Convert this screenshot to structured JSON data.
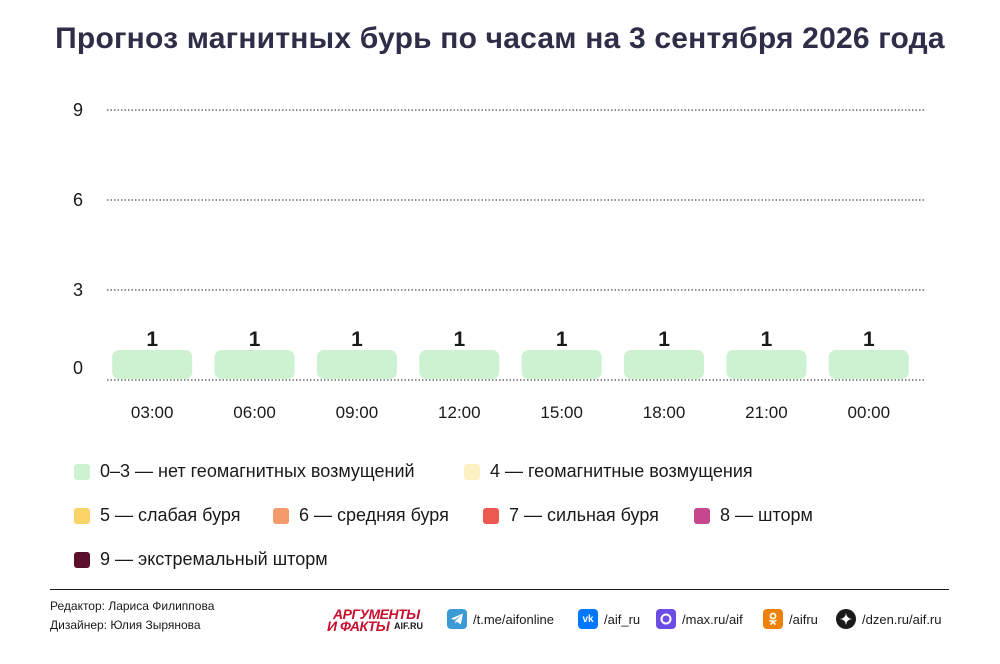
{
  "chart_data": {
    "type": "bar",
    "title": "Прогноз магнитных бурь по часам на 3 сентября 2026 года",
    "categories": [
      "03:00",
      "06:00",
      "09:00",
      "12:00",
      "15:00",
      "18:00",
      "21:00",
      "00:00"
    ],
    "values": [
      1,
      1,
      1,
      1,
      1,
      1,
      1,
      1
    ],
    "ylim": [
      0,
      9
    ],
    "yticks": [
      0,
      3,
      6,
      9
    ],
    "grid": true,
    "bar_color": "#ccf2d1",
    "legend_placement": "bottom",
    "legend": [
      {
        "label": "0–3 — нет геомагнитных возмущений",
        "color": "#ccf2d1"
      },
      {
        "label": "4 — геомагнитные возмущения",
        "color": "#fdf0c3"
      },
      {
        "label": "5 — слабая буря",
        "color": "#fad366"
      },
      {
        "label": "6 — средняя буря",
        "color": "#f39b6b"
      },
      {
        "label": "7 — сильная буря",
        "color": "#ec5a4f"
      },
      {
        "label": "8 — шторм",
        "color": "#c6478c"
      },
      {
        "label": "9 — экстремальный шторм",
        "color": "#5a0f2a"
      }
    ]
  },
  "credits": {
    "editor": "Редактор: Лариса Филиппова",
    "designer": "Дизайнер: Юлия Зырянова"
  },
  "brand": {
    "line1": "АРГУМЕНТЫ",
    "line2": "И ФАКТЫ",
    "site": "AIF.RU",
    "color": "#c8102e"
  },
  "social": [
    {
      "icon": "telegram-icon",
      "text": "/t.me/aifonline",
      "color": "#3a9bd5"
    },
    {
      "icon": "vk-icon",
      "text": "/aif_ru",
      "color": "#0077ff"
    },
    {
      "icon": "max-icon",
      "text": "/max.ru/aif",
      "color": "#6b4ce6"
    },
    {
      "icon": "odnoklassniki-icon",
      "text": "/aifru",
      "color": "#ee8208"
    },
    {
      "icon": "dzen-icon",
      "text": "/dzen.ru/aif.ru",
      "color": "#1a1a1a"
    }
  ]
}
